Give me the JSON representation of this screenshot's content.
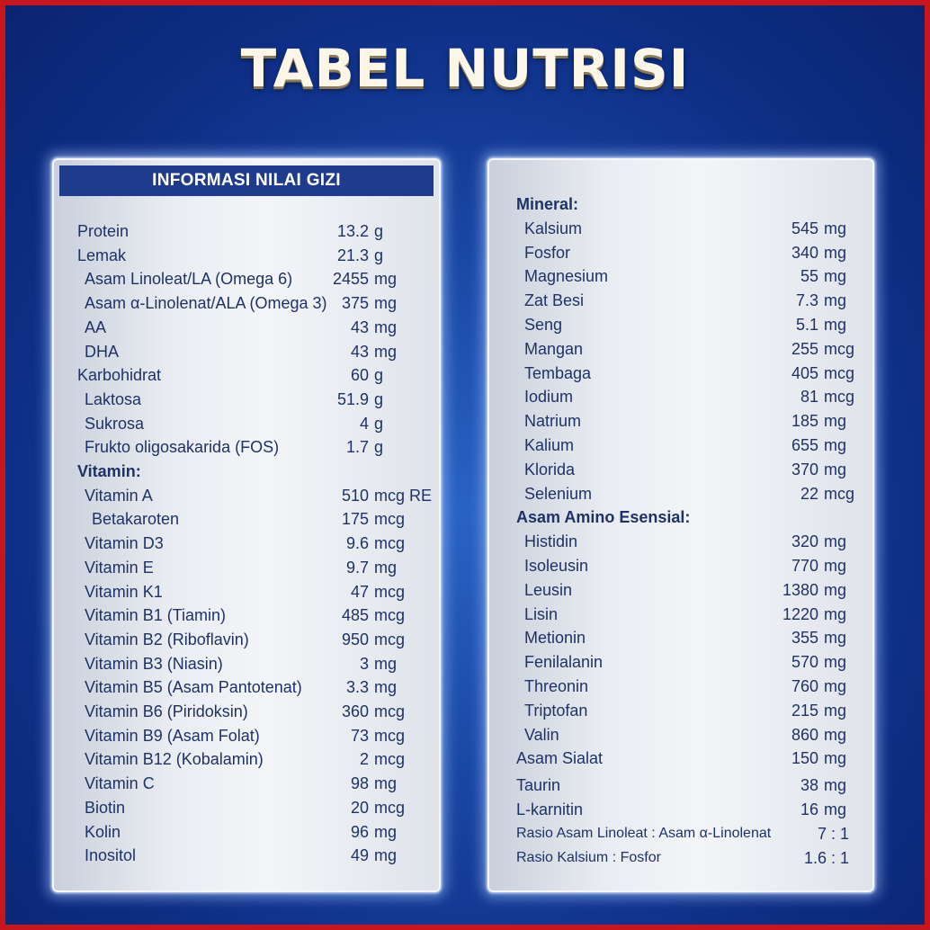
{
  "title": "TABEL NUTRISI",
  "left_panel": {
    "header": "INFORMASI NILAI GIZI",
    "rows": [
      {
        "name": "Protein",
        "amount": "13.2",
        "unit": "g",
        "indent": 0
      },
      {
        "name": "Lemak",
        "amount": "21.3",
        "unit": "g",
        "indent": 0
      },
      {
        "name": "Asam Linoleat/LA (Omega 6)",
        "amount": "2455",
        "unit": "mg",
        "indent": 1
      },
      {
        "name": "Asam α-Linolenat/ALA (Omega 3)",
        "amount": "375",
        "unit": "mg",
        "indent": 1
      },
      {
        "name": "AA",
        "amount": "43",
        "unit": "mg",
        "indent": 1
      },
      {
        "name": "DHA",
        "amount": "43",
        "unit": "mg",
        "indent": 1
      },
      {
        "name": "Karbohidrat",
        "amount": "60",
        "unit": "g",
        "indent": 0
      },
      {
        "name": "Laktosa",
        "amount": "51.9",
        "unit": "g",
        "indent": 1
      },
      {
        "name": "Sukrosa",
        "amount": "4",
        "unit": "g",
        "indent": 1
      },
      {
        "name": "Frukto oligosakarida (FOS)",
        "amount": "1.7",
        "unit": "g",
        "indent": 1
      },
      {
        "name": "Vitamin:",
        "amount": "",
        "unit": "",
        "indent": 0,
        "section": true
      },
      {
        "name": "Vitamin A",
        "amount": "510",
        "unit": "mcg RE",
        "indent": 1
      },
      {
        "name": "Betakaroten",
        "amount": "175",
        "unit": "mcg",
        "indent": 2
      },
      {
        "name": "Vitamin D3",
        "amount": "9.6",
        "unit": "mcg",
        "indent": 1
      },
      {
        "name": "Vitamin E",
        "amount": "9.7",
        "unit": "mg",
        "indent": 1
      },
      {
        "name": "Vitamin K1",
        "amount": "47",
        "unit": "mcg",
        "indent": 1
      },
      {
        "name": "Vitamin B1 (Tiamin)",
        "amount": "485",
        "unit": "mcg",
        "indent": 1
      },
      {
        "name": "Vitamin B2 (Riboflavin)",
        "amount": "950",
        "unit": "mcg",
        "indent": 1
      },
      {
        "name": "Vitamin B3 (Niasin)",
        "amount": "3",
        "unit": "mg",
        "indent": 1
      },
      {
        "name": "Vitamin B5 (Asam Pantotenat)",
        "amount": "3.3",
        "unit": "mg",
        "indent": 1
      },
      {
        "name": "Vitamin B6 (Piridoksin)",
        "amount": "360",
        "unit": "mcg",
        "indent": 1
      },
      {
        "name": "Vitamin B9 (Asam Folat)",
        "amount": "73",
        "unit": "mcg",
        "indent": 1
      },
      {
        "name": "Vitamin B12 (Kobalamin)",
        "amount": "2",
        "unit": "mcg",
        "indent": 1
      },
      {
        "name": "Vitamin C",
        "amount": "98",
        "unit": "mg",
        "indent": 1
      },
      {
        "name": "Biotin",
        "amount": "20",
        "unit": "mcg",
        "indent": 1
      },
      {
        "name": "Kolin",
        "amount": "96",
        "unit": "mg",
        "indent": 1
      },
      {
        "name": "Inositol",
        "amount": "49",
        "unit": "mg",
        "indent": 1
      }
    ]
  },
  "right_panel": {
    "rows": [
      {
        "name": "Mineral:",
        "amount": "",
        "unit": "",
        "indent": 0,
        "section": true
      },
      {
        "name": "Kalsium",
        "amount": "545",
        "unit": "mg",
        "indent": 1
      },
      {
        "name": "Fosfor",
        "amount": "340",
        "unit": "mg",
        "indent": 1
      },
      {
        "name": "Magnesium",
        "amount": "55",
        "unit": "mg",
        "indent": 1
      },
      {
        "name": "Zat Besi",
        "amount": "7.3",
        "unit": "mg",
        "indent": 1
      },
      {
        "name": "Seng",
        "amount": "5.1",
        "unit": "mg",
        "indent": 1
      },
      {
        "name": "Mangan",
        "amount": "255",
        "unit": "mcg",
        "indent": 1
      },
      {
        "name": "Tembaga",
        "amount": "405",
        "unit": "mcg",
        "indent": 1
      },
      {
        "name": "Iodium",
        "amount": "81",
        "unit": "mcg",
        "indent": 1
      },
      {
        "name": "Natrium",
        "amount": "185",
        "unit": "mg",
        "indent": 1
      },
      {
        "name": "Kalium",
        "amount": "655",
        "unit": "mg",
        "indent": 1
      },
      {
        "name": "Klorida",
        "amount": "370",
        "unit": "mg",
        "indent": 1
      },
      {
        "name": "Selenium",
        "amount": "22",
        "unit": "mcg",
        "indent": 1
      },
      {
        "name": "Asam Amino Esensial:",
        "amount": "",
        "unit": "",
        "indent": 0,
        "section": true
      },
      {
        "name": "Histidin",
        "amount": "320",
        "unit": "mg",
        "indent": 1
      },
      {
        "name": "Isoleusin",
        "amount": "770",
        "unit": "mg",
        "indent": 1
      },
      {
        "name": "Leusin",
        "amount": "1380",
        "unit": "mg",
        "indent": 1
      },
      {
        "name": "Lisin",
        "amount": "1220",
        "unit": "mg",
        "indent": 1
      },
      {
        "name": "Metionin",
        "amount": "355",
        "unit": "mg",
        "indent": 1
      },
      {
        "name": "Fenilalanin",
        "amount": "570",
        "unit": "mg",
        "indent": 1
      },
      {
        "name": "Threonin",
        "amount": "760",
        "unit": "mg",
        "indent": 1
      },
      {
        "name": "Triptofan",
        "amount": "215",
        "unit": "mg",
        "indent": 1
      },
      {
        "name": "Valin",
        "amount": "860",
        "unit": "mg",
        "indent": 1
      },
      {
        "name": "Asam Sialat",
        "amount": "150",
        "unit": "mg",
        "indent": 0
      },
      {
        "name": "Taurin",
        "amount": "38",
        "unit": "mg",
        "indent": 0
      },
      {
        "name": "L-karnitin",
        "amount": "16",
        "unit": "mg",
        "indent": 0
      },
      {
        "name": "Rasio Asam Linoleat : Asam α-Linolenat",
        "ratio": "7 : 1",
        "indent": 0
      },
      {
        "name": "Rasio Kalsium : Fosfor",
        "ratio": "1.6 : 1",
        "indent": 0
      }
    ]
  }
}
